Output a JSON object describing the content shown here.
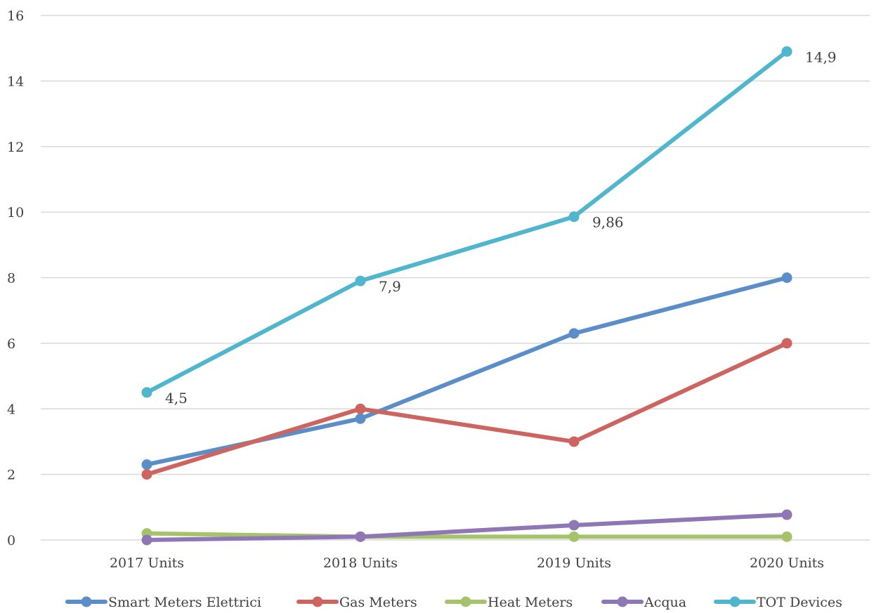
{
  "chart_data": {
    "type": "line",
    "title": "",
    "xlabel": "",
    "ylabel": "",
    "categories": [
      "2017 Units",
      "2018 Units",
      "2019 Units",
      "2020 Units"
    ],
    "ylim": [
      0,
      16
    ],
    "yticks": [
      "0",
      "2",
      "4",
      "6",
      "8",
      "10",
      "12",
      "14",
      "16"
    ],
    "grid": "horizontal",
    "legend_position": "bottom",
    "series": [
      {
        "name": "Smart Meters Elettrici",
        "color": "#5b8ec9",
        "values": [
          2.3,
          3.7,
          6.3,
          8.0
        ],
        "labels": [
          "",
          "",
          "",
          ""
        ]
      },
      {
        "name": "Gas Meters",
        "color": "#cd6460",
        "values": [
          2.0,
          4.0,
          3.0,
          6.0
        ],
        "labels": [
          "",
          "",
          "",
          ""
        ]
      },
      {
        "name": "Heat Meters",
        "color": "#a4c36b",
        "values": [
          0.2,
          0.1,
          0.1,
          0.1
        ],
        "labels": [
          "",
          "",
          "",
          ""
        ]
      },
      {
        "name": "Acqua",
        "color": "#8f76b4",
        "values": [
          0.0,
          0.1,
          0.45,
          0.77
        ],
        "labels": [
          "",
          "",
          "",
          ""
        ]
      },
      {
        "name": "TOT Devices",
        "color": "#4fb6cd",
        "values": [
          4.5,
          7.9,
          9.86,
          14.9
        ],
        "labels": [
          "4,5",
          "7,9",
          "9,86",
          "14,9"
        ]
      }
    ]
  }
}
